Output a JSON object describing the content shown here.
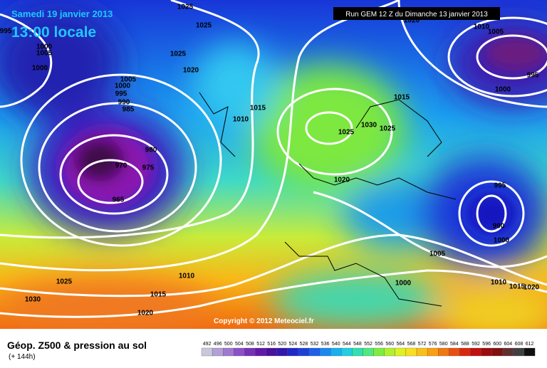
{
  "header": {
    "date": "Samedi 19 janvier 2013",
    "time": "13:00 locale",
    "run": "Run GEM 12 Z du Dimanche 13 janvier 2013"
  },
  "footer": {
    "title": "Géop. Z500 & pression au sol",
    "lead": "(+ 144h)",
    "copyright": "Copyright © 2012 Meteociel.fr"
  },
  "colorbar": {
    "levels": [
      492,
      496,
      500,
      504,
      508,
      512,
      516,
      520,
      524,
      528,
      532,
      536,
      540,
      544,
      548,
      552,
      556,
      560,
      564,
      568,
      572,
      576,
      580,
      584,
      588,
      592,
      596,
      600,
      604,
      608,
      612
    ]
  },
  "isobar_labels": [
    1025,
    995,
    1000,
    1005,
    1000,
    1025,
    1025,
    1020,
    1005,
    1000,
    995,
    990,
    985,
    980,
    970,
    975,
    965,
    1010,
    1015,
    1025,
    1030,
    1025,
    1015,
    1020,
    1020,
    1010,
    1005,
    995,
    1000,
    995,
    990,
    1000,
    1005,
    1000,
    1010,
    1015,
    1020,
    1025,
    1030,
    1010,
    1015,
    1020
  ]
}
